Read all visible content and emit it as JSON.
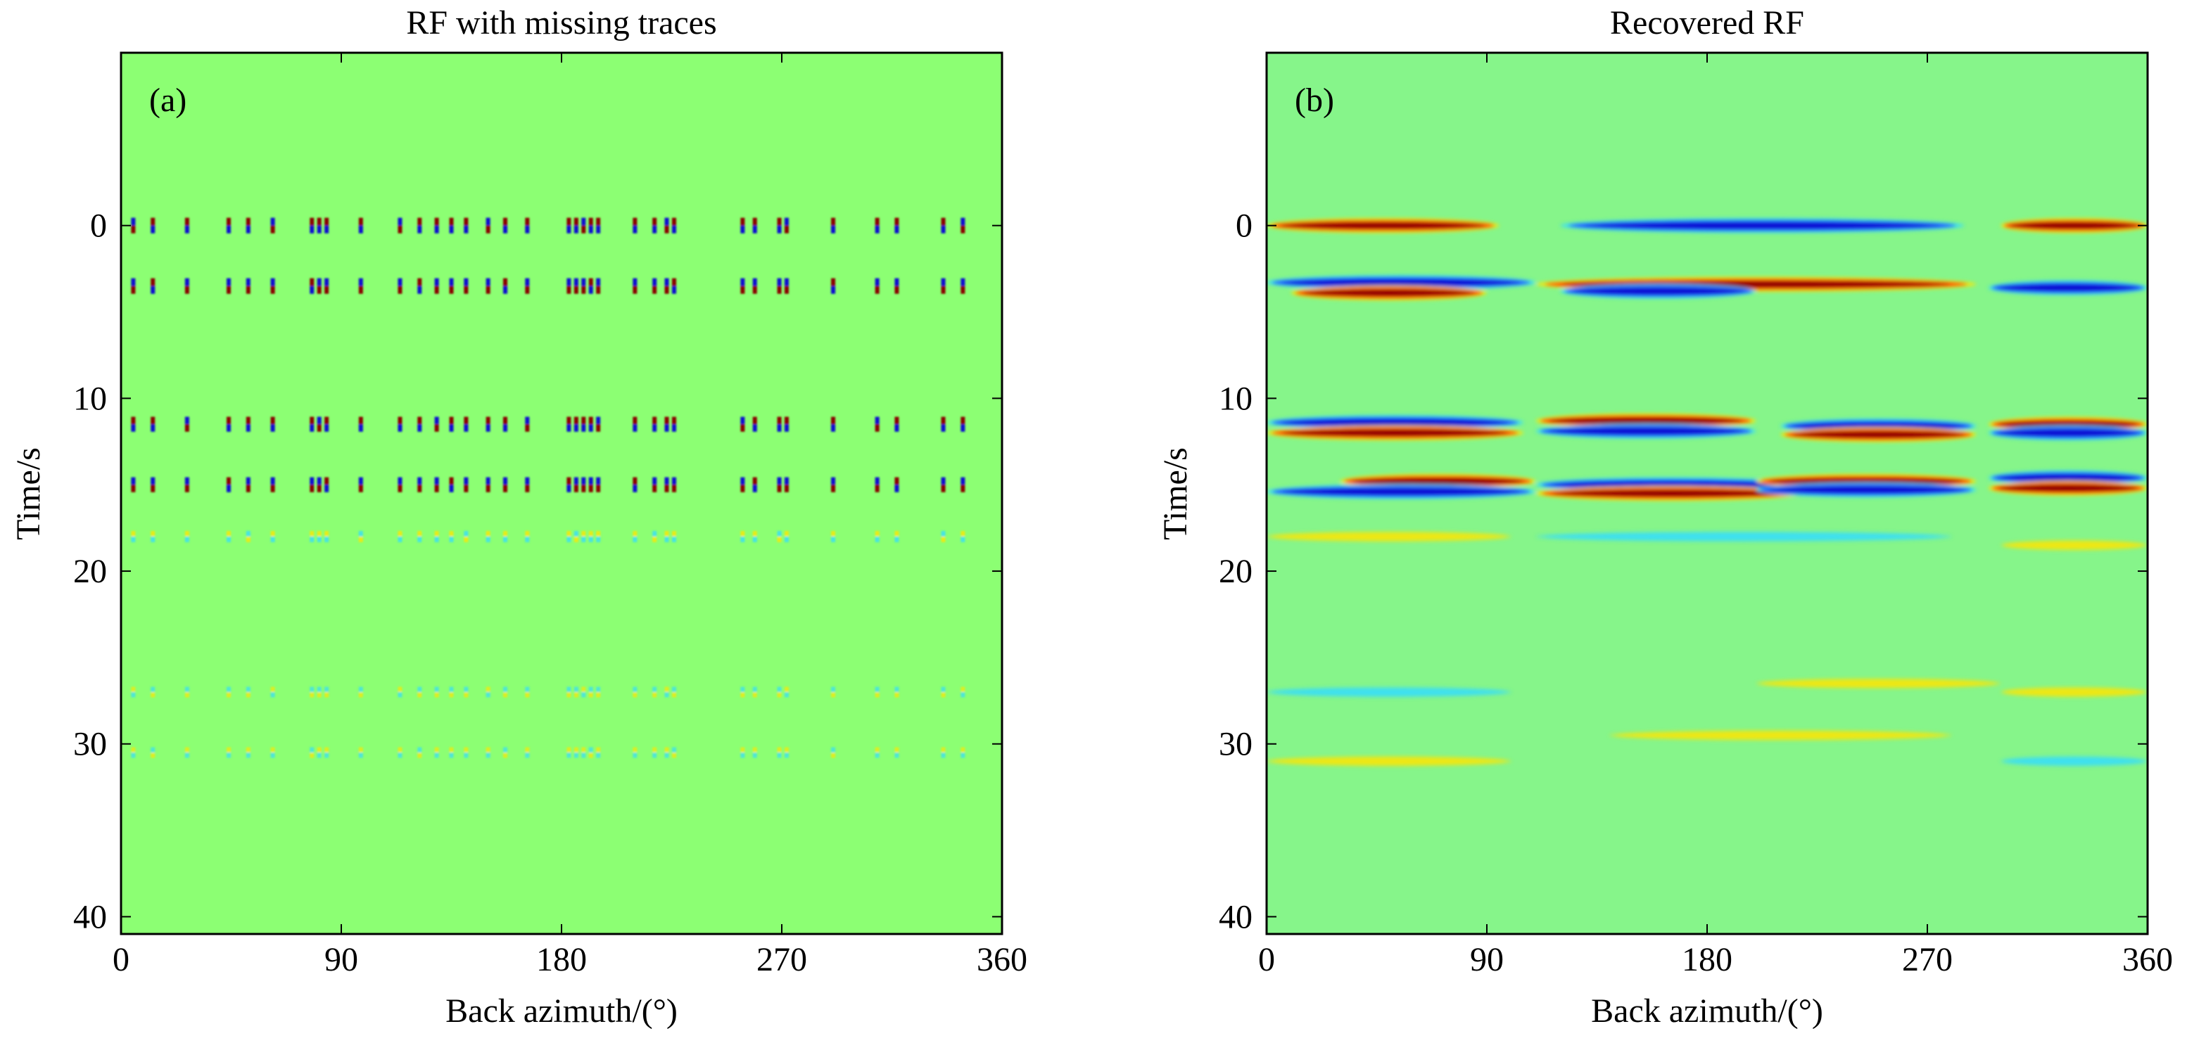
{
  "colors": {
    "background": "#8cff73",
    "background_b": "#86f58a",
    "dark_red": "#8a0000",
    "red": "#ff2a00",
    "yellow": "#ffe600",
    "cyan": "#33ddff",
    "dark_blue": "#0a0fd0"
  },
  "chart_data": [
    {
      "type": "heatmap",
      "panel_label": "(a)",
      "title": "RF with missing traces",
      "xlabel": "Back azimuth/(°)",
      "ylabel": "Time/s",
      "xlim": [
        0,
        360
      ],
      "ylim": [
        -10,
        41
      ],
      "y_reversed": true,
      "xticks": [
        0,
        90,
        180,
        270,
        360
      ],
      "yticks": [
        0,
        10,
        20,
        30,
        40
      ],
      "trace_azimuths": [
        5,
        13,
        27,
        44,
        52,
        62,
        78,
        81,
        84,
        98,
        114,
        122,
        129,
        135,
        141,
        150,
        157,
        166,
        183,
        186,
        189,
        192,
        195,
        210,
        218,
        223,
        226,
        254,
        259,
        269,
        272,
        291,
        309,
        317,
        336,
        344
      ],
      "events": [
        {
          "time": 0,
          "polarity": 1,
          "strength": 1.0,
          "color_positive": "dark-red",
          "color_negative": "dark-blue"
        },
        {
          "time": 3.5,
          "polarity": -1,
          "strength": 1.0,
          "color_positive": "dark-red",
          "color_negative": "dark-blue"
        },
        {
          "time": 11.5,
          "polarity": 1,
          "strength": 0.9,
          "color_positive": "dark-red",
          "color_negative": "dark-blue"
        },
        {
          "time": 15.0,
          "polarity": -1,
          "strength": 0.9,
          "color_positive": "dark-red",
          "color_negative": "dark-blue"
        },
        {
          "time": 18.0,
          "polarity": 1,
          "strength": 0.3,
          "color_positive": "yellow",
          "color_negative": "cyan"
        },
        {
          "time": 27.0,
          "polarity": -1,
          "strength": 0.2,
          "color_positive": "yellow",
          "color_negative": "cyan"
        },
        {
          "time": 30.5,
          "polarity": 1,
          "strength": 0.2,
          "color_positive": "yellow",
          "color_negative": "cyan"
        }
      ]
    },
    {
      "type": "heatmap",
      "panel_label": "(b)",
      "title": "Recovered RF",
      "xlabel": "Back azimuth/(°)",
      "ylabel": "Time/s",
      "xlim": [
        0,
        360
      ],
      "ylim": [
        -10,
        41
      ],
      "y_reversed": true,
      "xticks": [
        0,
        90,
        180,
        270,
        360
      ],
      "yticks": [
        0,
        10,
        20,
        30,
        40
      ],
      "bands": [
        {
          "time": 0.0,
          "from": 0,
          "to": 95,
          "color": "dark-red"
        },
        {
          "time": 0.0,
          "from": 120,
          "to": 285,
          "color": "dark-blue"
        },
        {
          "time": 0.0,
          "from": 300,
          "to": 360,
          "color": "dark-red"
        },
        {
          "time": 3.3,
          "from": 0,
          "to": 110,
          "color": "dark-blue"
        },
        {
          "time": 3.9,
          "from": 10,
          "to": 90,
          "color": "dark-red"
        },
        {
          "time": 3.4,
          "from": 110,
          "to": 290,
          "color": "dark-red"
        },
        {
          "time": 3.8,
          "from": 120,
          "to": 200,
          "color": "dark-blue"
        },
        {
          "time": 3.6,
          "from": 295,
          "to": 360,
          "color": "dark-blue"
        },
        {
          "time": 11.4,
          "from": 0,
          "to": 105,
          "color": "dark-blue"
        },
        {
          "time": 12.0,
          "from": 0,
          "to": 105,
          "color": "dark-red"
        },
        {
          "time": 11.3,
          "from": 110,
          "to": 200,
          "color": "dark-red"
        },
        {
          "time": 11.9,
          "from": 110,
          "to": 200,
          "color": "dark-blue"
        },
        {
          "time": 11.6,
          "from": 210,
          "to": 290,
          "color": "dark-blue"
        },
        {
          "time": 12.1,
          "from": 210,
          "to": 290,
          "color": "dark-red"
        },
        {
          "time": 11.5,
          "from": 295,
          "to": 360,
          "color": "dark-red"
        },
        {
          "time": 12.0,
          "from": 295,
          "to": 360,
          "color": "dark-blue"
        },
        {
          "time": 14.8,
          "from": 30,
          "to": 110,
          "color": "dark-red"
        },
        {
          "time": 15.4,
          "from": 0,
          "to": 110,
          "color": "dark-blue"
        },
        {
          "time": 15.0,
          "from": 110,
          "to": 220,
          "color": "dark-blue"
        },
        {
          "time": 15.5,
          "from": 110,
          "to": 220,
          "color": "dark-red"
        },
        {
          "time": 14.8,
          "from": 200,
          "to": 290,
          "color": "dark-red"
        },
        {
          "time": 15.3,
          "from": 200,
          "to": 290,
          "color": "dark-blue"
        },
        {
          "time": 14.6,
          "from": 295,
          "to": 360,
          "color": "dark-blue"
        },
        {
          "time": 15.2,
          "from": 295,
          "to": 360,
          "color": "dark-red"
        },
        {
          "time": 18.0,
          "from": 0,
          "to": 100,
          "color": "yellow"
        },
        {
          "time": 18.0,
          "from": 110,
          "to": 280,
          "color": "cyan"
        },
        {
          "time": 18.5,
          "from": 300,
          "to": 360,
          "color": "yellow"
        },
        {
          "time": 27.0,
          "from": 0,
          "to": 100,
          "color": "cyan"
        },
        {
          "time": 26.5,
          "from": 200,
          "to": 300,
          "color": "yellow"
        },
        {
          "time": 27.0,
          "from": 300,
          "to": 360,
          "color": "yellow"
        },
        {
          "time": 29.5,
          "from": 140,
          "to": 280,
          "color": "yellow"
        },
        {
          "time": 31.0,
          "from": 0,
          "to": 100,
          "color": "yellow"
        },
        {
          "time": 31.0,
          "from": 300,
          "to": 360,
          "color": "cyan"
        }
      ]
    }
  ]
}
